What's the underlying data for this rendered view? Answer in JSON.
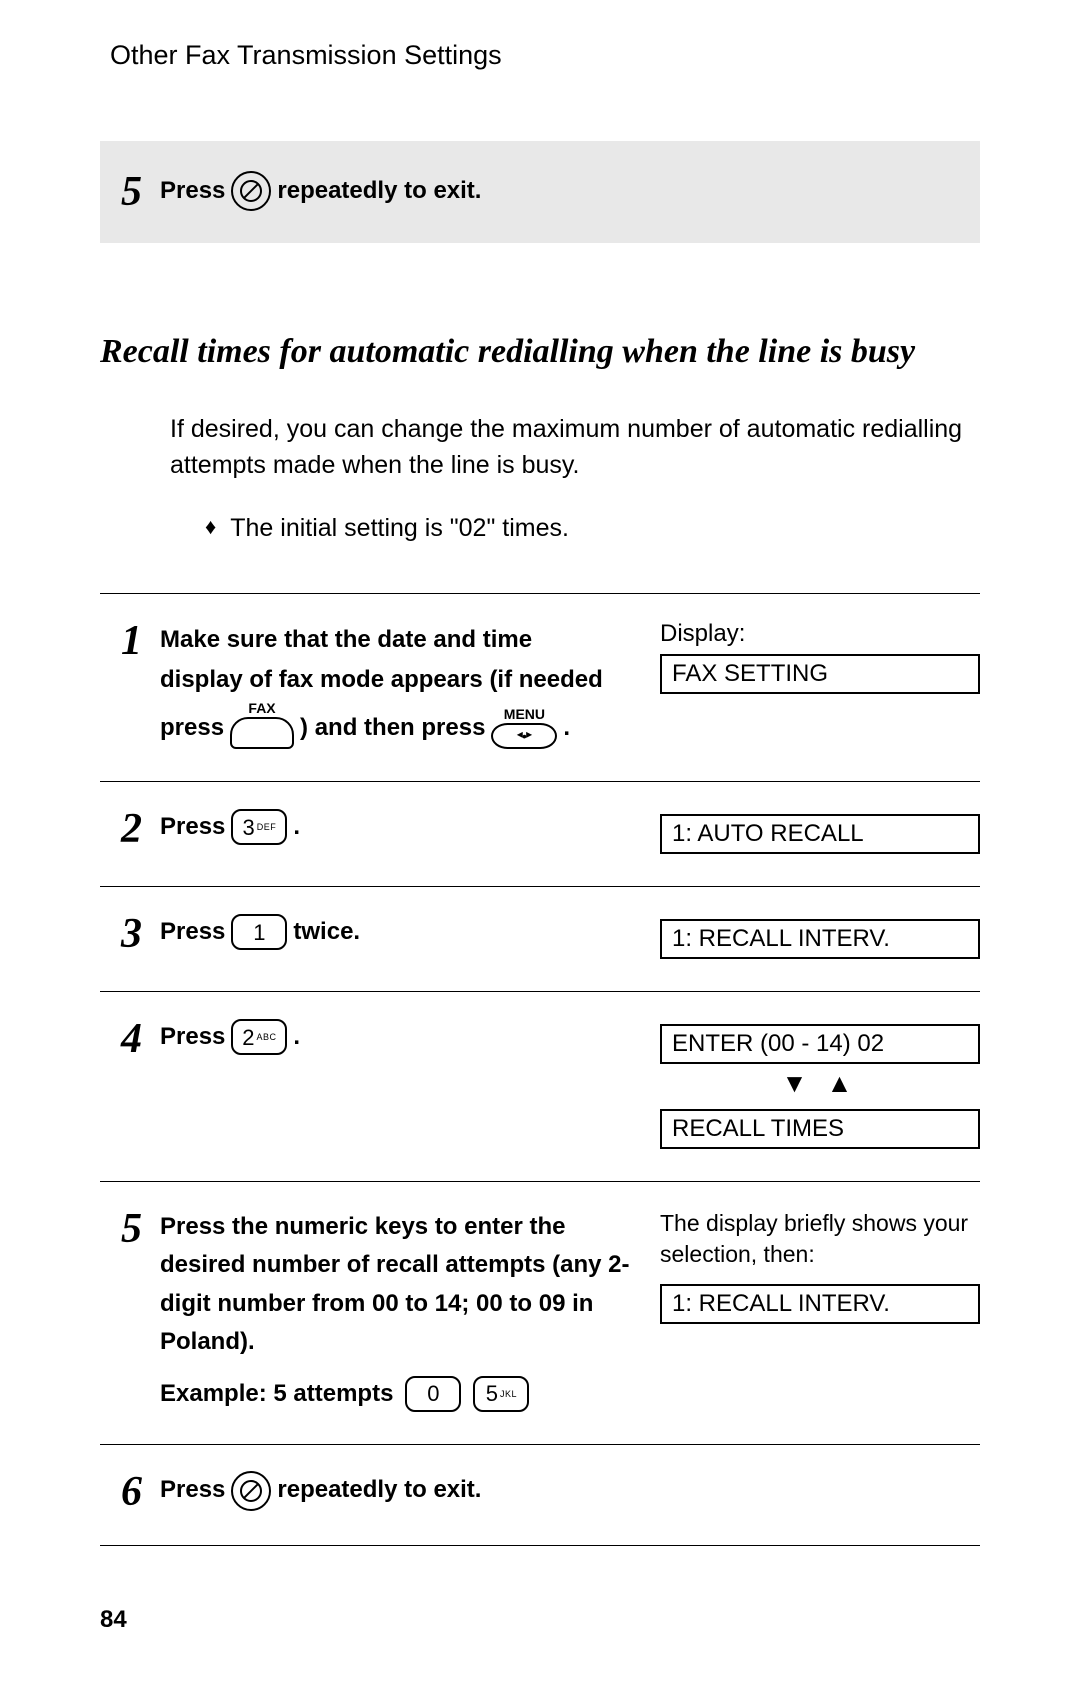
{
  "header": "Other Fax Transmission Settings",
  "top_step": {
    "num": "5",
    "press": "Press",
    "tail": "repeatedly to exit."
  },
  "section_title": "Recall times for automatic redialling when the line is busy",
  "intro": "If desired, you can change the maximum number of automatic redialling attempts made when the line is busy.",
  "bullet": "The initial setting is \"02\" times.",
  "steps": {
    "s1": {
      "num": "1",
      "line1": "Make sure that the date and time",
      "line2": "display of fax mode appears (if needed",
      "press_word": "press",
      "and_then": ") and then press",
      "fax_label": "FAX",
      "menu_label": "MENU",
      "display_label": "Display:",
      "display_box": "FAX SETTING",
      "period": "."
    },
    "s2": {
      "num": "2",
      "press": "Press",
      "key_main": "3",
      "key_sub": "DEF",
      "period": ".",
      "display_box": "1: AUTO RECALL"
    },
    "s3": {
      "num": "3",
      "press": "Press",
      "key_main": "1",
      "tail": "twice.",
      "display_box": "1: RECALL INTERV."
    },
    "s4": {
      "num": "4",
      "press": "Press",
      "key_main": "2",
      "key_sub": "ABC",
      "period": ".",
      "display_box1": "ENTER (00 - 14) 02",
      "display_box2": "RECALL TIMES"
    },
    "s5": {
      "num": "5",
      "text": "Press the numeric keys to enter the desired number of recall attempts (any 2-digit number from 00 to 14; 00 to 09 in Poland).",
      "example_label": "Example: 5 attempts",
      "key0": "0",
      "key5_main": "5",
      "key5_sub": "JKL",
      "brief": "The display briefly shows your selection, then:",
      "display_box": "1: RECALL INTERV."
    },
    "s6": {
      "num": "6",
      "press": "Press",
      "tail": "repeatedly to exit."
    }
  },
  "page_num": "84"
}
